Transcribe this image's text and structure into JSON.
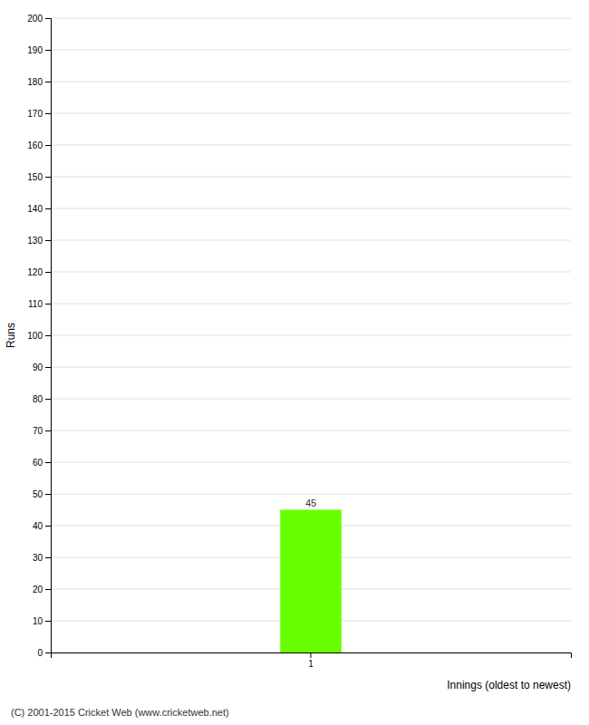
{
  "chart_data": {
    "type": "bar",
    "categories": [
      "1"
    ],
    "values": [
      45
    ],
    "color": "#66ff00",
    "xlabel": "Innings (oldest to newest)",
    "ylabel": "Runs",
    "ylim": [
      0,
      200
    ],
    "yticks": [
      0,
      10,
      20,
      30,
      40,
      50,
      60,
      70,
      80,
      90,
      100,
      110,
      120,
      130,
      140,
      150,
      160,
      170,
      180,
      190,
      200
    ],
    "grid": true,
    "data_labels": true,
    "annotations": [
      "(C) 2001-2015 Cricket Web (www.cricketweb.net)"
    ]
  }
}
